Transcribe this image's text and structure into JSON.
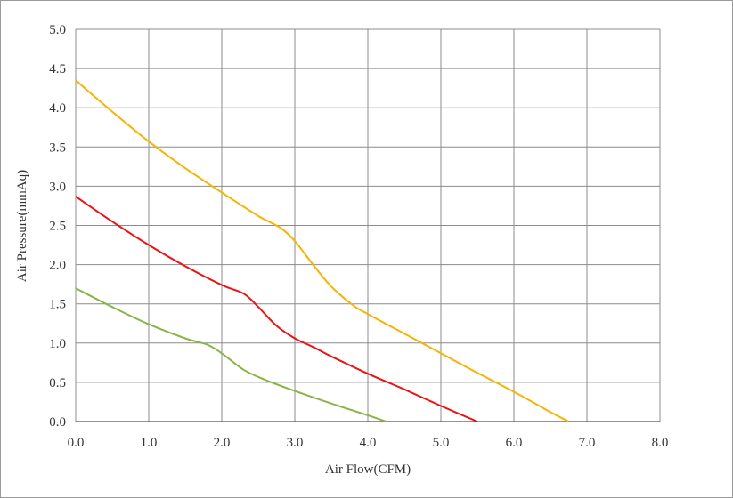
{
  "chart_data": {
    "type": "line",
    "title": "",
    "xlabel": "Air Flow(CFM)",
    "ylabel": "Air Pressure(mmAq)",
    "xlim": [
      0,
      8
    ],
    "ylim": [
      0,
      5
    ],
    "xticks": [
      "0.0",
      "1.0",
      "2.0",
      "3.0",
      "4.0",
      "5.0",
      "6.0",
      "7.0",
      "8.0"
    ],
    "yticks": [
      "0.0",
      "0.5",
      "1.0",
      "1.5",
      "2.0",
      "2.5",
      "3.0",
      "3.5",
      "4.0",
      "4.5",
      "5.0"
    ],
    "grid": true,
    "legend": "none",
    "series": [
      {
        "color": "#f5b400",
        "x": [
          0.0,
          0.5,
          1.0,
          1.5,
          2.0,
          2.5,
          2.8,
          3.0,
          3.25,
          3.5,
          3.8,
          4.0,
          4.5,
          5.0,
          5.5,
          6.0,
          6.5,
          6.75
        ],
        "y": [
          4.35,
          3.95,
          3.57,
          3.23,
          2.92,
          2.62,
          2.47,
          2.3,
          2.0,
          1.72,
          1.48,
          1.37,
          1.12,
          0.87,
          0.62,
          0.38,
          0.12,
          0.0
        ]
      },
      {
        "color": "#ee1111",
        "x": [
          0.0,
          0.5,
          1.0,
          1.5,
          2.0,
          2.3,
          2.5,
          2.75,
          3.0,
          3.25,
          3.5,
          4.0,
          4.5,
          5.0,
          5.5
        ],
        "y": [
          2.87,
          2.55,
          2.25,
          1.98,
          1.74,
          1.63,
          1.46,
          1.22,
          1.06,
          0.95,
          0.83,
          0.61,
          0.41,
          0.2,
          0.0
        ]
      },
      {
        "color": "#8ab34a",
        "x": [
          0.0,
          0.5,
          1.0,
          1.5,
          1.8,
          2.0,
          2.3,
          2.6,
          3.0,
          3.5,
          4.0,
          4.25
        ],
        "y": [
          1.7,
          1.46,
          1.24,
          1.06,
          0.98,
          0.87,
          0.66,
          0.53,
          0.39,
          0.23,
          0.08,
          0.0
        ]
      }
    ]
  }
}
